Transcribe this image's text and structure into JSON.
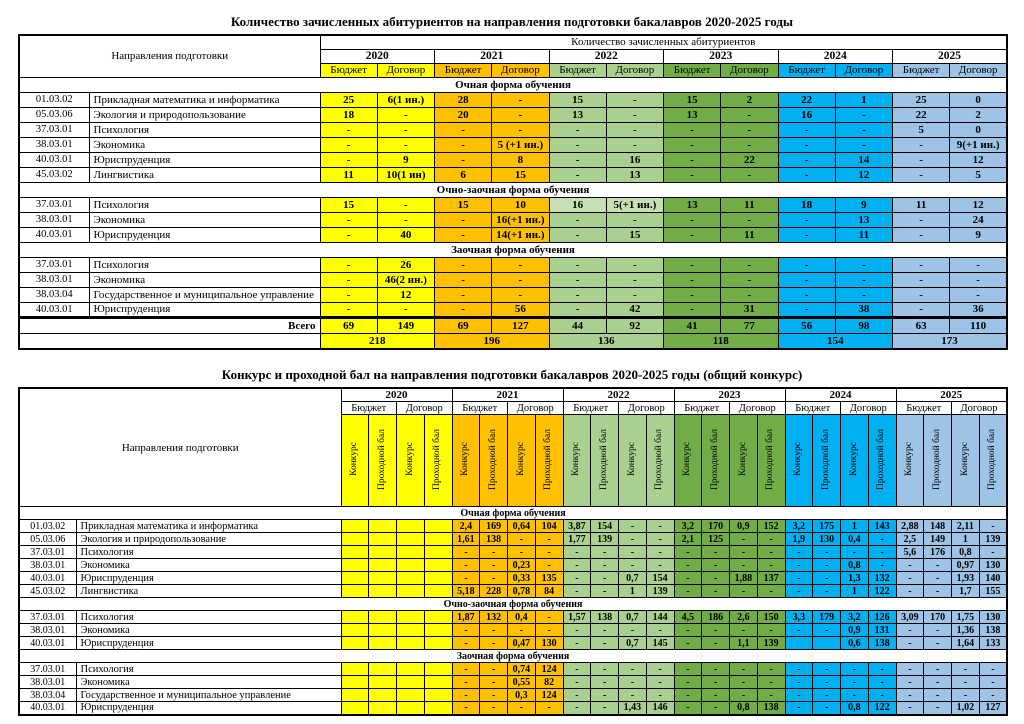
{
  "years": [
    "2020",
    "2021",
    "2022",
    "2023",
    "2024",
    "2025"
  ],
  "year_colors": [
    "#FFFF00",
    "#FFC000",
    "#A9D08E",
    "#70AD47",
    "#00B0F0",
    "#9DC3E6"
  ],
  "light_green": "#C6E0B4",
  "table1": {
    "title": "Количество зачисленных абитуриентов на направления подготовки бакалавров 2020-2025 годы",
    "corner": "Направления подготовки",
    "banner": "Количество зачисленных абитуриентов",
    "subcols": [
      "Бюджет",
      "Договор"
    ],
    "sections": [
      {
        "label": "Очная форма обучения",
        "rows": [
          {
            "code": "01.03.02",
            "name": "Прикладная математика и информатика",
            "values": [
              "25",
              "6(1 ин.)",
              "28",
              "-",
              "15",
              "-",
              "15",
              "2",
              "22",
              "1",
              "25",
              "0"
            ]
          },
          {
            "code": "05.03.06",
            "name": "Экология и природопользование",
            "values": [
              "18",
              "-",
              "20",
              "-",
              "13",
              "-",
              "13",
              "-",
              "16",
              "-",
              "22",
              "2"
            ]
          },
          {
            "code": "37.03.01",
            "name": "Психология",
            "values": [
              "-",
              "-",
              "-",
              "-",
              "-",
              "-",
              "-",
              "-",
              "-",
              "-",
              "5",
              "0"
            ]
          },
          {
            "code": "38.03.01",
            "name": "Экономика",
            "values": [
              "-",
              "-",
              "-",
              "5 (+1 ин.)",
              "-",
              "-",
              "-",
              "-",
              "-",
              "-",
              "-",
              "9(+1 ин.)"
            ]
          },
          {
            "code": "40.03.01",
            "name": "Юриспруденция",
            "values": [
              "-",
              "9",
              "-",
              "8",
              "-",
              "16",
              "-",
              "22",
              "-",
              "14",
              "-",
              "12"
            ]
          },
          {
            "code": "45.03.02",
            "name": "Лингвистика",
            "values": [
              "11",
              "10(1 ин)",
              "6",
              "15",
              "-",
              "13",
              "-",
              "-",
              "-",
              "12",
              "-",
              "5"
            ]
          }
        ]
      },
      {
        "label": "Очно-заочная форма обучения",
        "rows": [
          {
            "code": "37.03.01",
            "name": "Психология",
            "values": [
              "15",
              "-",
              "15",
              "10",
              "16",
              "5(+1 ин.)",
              "13",
              "11",
              "18",
              "9",
              "11",
              "12"
            ],
            "light": [
              4,
              5
            ]
          },
          {
            "code": "38.03.01",
            "name": "Экономика",
            "values": [
              "-",
              "-",
              "-",
              "16(+1 ин.)",
              "-",
              "-",
              "-",
              "-",
              "-",
              "13",
              "-",
              "24"
            ]
          },
          {
            "code": "40.03.01",
            "name": "Юриспруденция",
            "values": [
              "-",
              "40",
              "-",
              "14(+1 ин.)",
              "-",
              "15",
              "-",
              "11",
              "-",
              "11",
              "-",
              "9"
            ]
          }
        ]
      },
      {
        "label": "Заочная форма обучения",
        "rows": [
          {
            "code": "37.03.01",
            "name": "Психология",
            "values": [
              "-",
              "26",
              "-",
              "-",
              "-",
              "-",
              "-",
              "-",
              "-",
              "-",
              "-",
              "-"
            ]
          },
          {
            "code": "38.03.01",
            "name": "Экономика",
            "values": [
              "-",
              "46(2 ин.)",
              "-",
              "-",
              "-",
              "-",
              "-",
              "-",
              "-",
              "-",
              "-",
              "-"
            ]
          },
          {
            "code": "38.03.04",
            "name": "Государственное и муниципальное управление",
            "values": [
              "-",
              "12",
              "-",
              "-",
              "-",
              "-",
              "-",
              "-",
              "-",
              "-",
              "-",
              "-"
            ]
          },
          {
            "code": "40.03.01",
            "name": "Юриспруденция",
            "values": [
              "-",
              "-",
              "-",
              "56",
              "-",
              "42",
              "-",
              "31",
              "-",
              "38",
              "-",
              "36"
            ]
          }
        ]
      }
    ],
    "total_label": "Всего",
    "totals": [
      "69",
      "149",
      "69",
      "127",
      "44",
      "92",
      "41",
      "77",
      "56",
      "98",
      "63",
      "110"
    ],
    "year_totals": [
      "218",
      "196",
      "136",
      "118",
      "154",
      "173"
    ]
  },
  "table2": {
    "title": "Конкурс и проходной бал на направления подготовки бакалавров 2020-2025 годы (общий конкурс)",
    "corner": "Направления подготовки",
    "subcols": [
      "Бюджет",
      "Договор"
    ],
    "metrics": [
      "Конкурс",
      "Проходной бал"
    ],
    "sections": [
      {
        "label": "Очная форма обучения",
        "rows": [
          {
            "code": "01.03.02",
            "name": "Прикладная математика и информатика",
            "values": [
              "",
              "",
              "",
              "",
              "2,4",
              "169",
              "0,64",
              "104",
              "3,87",
              "154",
              "-",
              "-",
              "3,2",
              "170",
              "0,9",
              "152",
              "3,2",
              "175",
              "1",
              "143",
              "2,88",
              "148",
              "2,11",
              "-"
            ]
          },
          {
            "code": "05.03.06",
            "name": "Экология и природопользование",
            "values": [
              "",
              "",
              "",
              "",
              "1,61",
              "138",
              "-",
              "-",
              "1,77",
              "139",
              "-",
              "-",
              "2,1",
              "125",
              "-",
              "-",
              "1,9",
              "130",
              "0,4",
              "-",
              "2,5",
              "149",
              "1",
              "139"
            ]
          },
          {
            "code": "37.03.01",
            "name": "Психология",
            "values": [
              "",
              "",
              "",
              "",
              "-",
              "-",
              "-",
              "-",
              "-",
              "-",
              "-",
              "-",
              "-",
              "-",
              "-",
              "-",
              "-",
              "-",
              "-",
              "-",
              "5,6",
              "176",
              "0,8",
              "-"
            ]
          },
          {
            "code": "38.03.01",
            "name": "Экономика",
            "values": [
              "",
              "",
              "",
              "",
              "-",
              "-",
              "0,23",
              "-",
              "-",
              "-",
              "-",
              "-",
              "-",
              "-",
              "-",
              "-",
              "-",
              "-",
              "0,8",
              "-",
              "-",
              "-",
              "0,97",
              "130"
            ]
          },
          {
            "code": "40.03.01",
            "name": "Юриспруденция",
            "values": [
              "",
              "",
              "",
              "",
              "-",
              "-",
              "0,33",
              "135",
              "-",
              "-",
              "0,7",
              "154",
              "-",
              "-",
              "1,88",
              "137",
              "-",
              "-",
              "1,3",
              "132",
              "-",
              "-",
              "1,93",
              "140"
            ]
          },
          {
            "code": "45.03.02",
            "name": "Лингвистика",
            "values": [
              "",
              "",
              "",
              "",
              "5,18",
              "228",
              "0,78",
              "84",
              "-",
              "-",
              "1",
              "139",
              "-",
              "-",
              "-",
              "-",
              "-",
              "-",
              "1",
              "122",
              "-",
              "-",
              "1,7",
              "155"
            ]
          }
        ]
      },
      {
        "label": "Очно-заочная форма обучения",
        "rows": [
          {
            "code": "37.03.01",
            "name": "Психология",
            "values": [
              "",
              "",
              "",
              "",
              "1,87",
              "132",
              "0,4",
              "-",
              "1,57",
              "138",
              "0,7",
              "144",
              "4,5",
              "186",
              "2,6",
              "150",
              "3,3",
              "179",
              "3,2",
              "126",
              "3,09",
              "170",
              "1,75",
              "130"
            ]
          },
          {
            "code": "38.03.01",
            "name": "Экономика",
            "values": [
              "",
              "",
              "",
              "",
              "-",
              "-",
              "-",
              "-",
              "-",
              "-",
              "-",
              "-",
              "-",
              "-",
              "-",
              "-",
              "-",
              "-",
              "0,9",
              "131",
              "-",
              "-",
              "1,36",
              "138"
            ]
          },
          {
            "code": "40.03.01",
            "name": "Юриспруденция",
            "values": [
              "",
              "",
              "",
              "",
              "-",
              "-",
              "0,47",
              "130",
              "-",
              "-",
              "0,7",
              "145",
              "-",
              "-",
              "1,1",
              "139",
              "",
              "",
              "0,6",
              "138",
              "-",
              "-",
              "1,64",
              "133"
            ]
          }
        ]
      },
      {
        "label": "Заочная форма обучения",
        "rows": [
          {
            "code": "37.03.01",
            "name": "Психология",
            "values": [
              "",
              "",
              "",
              "",
              "-",
              "-",
              "0,74",
              "124",
              "-",
              "-",
              "-",
              "-",
              "-",
              "-",
              "-",
              "-",
              "-",
              "-",
              "-",
              "-",
              "-",
              "-",
              "-",
              "-"
            ]
          },
          {
            "code": "38.03.01",
            "name": "Экономика",
            "values": [
              "",
              "",
              "",
              "",
              "-",
              "-",
              "0,55",
              "82",
              "-",
              "-",
              "-",
              "-",
              "-",
              "-",
              "-",
              "-",
              "-",
              "-",
              "-",
              "-",
              "-",
              "-",
              "-",
              "-"
            ]
          },
          {
            "code": "38.03.04",
            "name": "Государственное и муниципальное управление",
            "values": [
              "",
              "",
              "",
              "",
              "-",
              "-",
              "0,3",
              "124",
              "-",
              "-",
              "-",
              "-",
              "-",
              "-",
              "-",
              "-",
              "-",
              "-",
              "-",
              "-",
              "-",
              "-",
              "-",
              "-"
            ]
          },
          {
            "code": "40.03.01",
            "name": "Юриспруденция",
            "values": [
              "",
              "",
              "",
              "",
              "-",
              "-",
              "-",
              "-",
              "-",
              "-",
              "1,43",
              "146",
              "-",
              "-",
              "0,8",
              "138",
              "-",
              "-",
              "0,8",
              "122",
              "-",
              "-",
              "1,02",
              "127"
            ]
          }
        ]
      }
    ]
  }
}
